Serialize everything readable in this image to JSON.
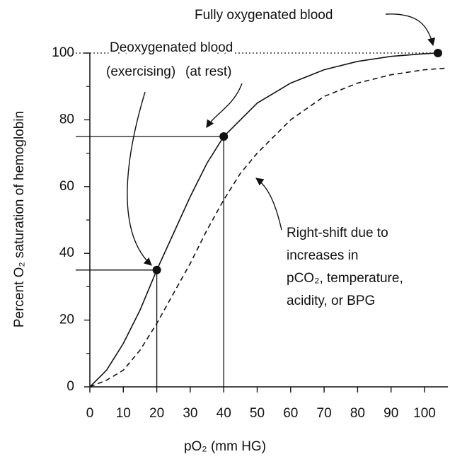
{
  "chart_data": {
    "type": "line",
    "xlabel": "pO₂ (mm HG)",
    "ylabel": "Percent O₂ saturation of hemoglobin",
    "x": [
      0,
      5,
      10,
      15,
      20,
      25,
      30,
      35,
      40,
      45,
      50,
      60,
      70,
      80,
      90,
      100,
      104,
      107
    ],
    "series": [
      {
        "color": "#111111",
        "style": "solid",
        "values": [
          0,
          5,
          13,
          23,
          35,
          46,
          57,
          67,
          75,
          80,
          85,
          91,
          95,
          97.5,
          99,
          99.8,
          100,
          null
        ]
      },
      {
        "color": "#111111",
        "style": "dashed",
        "values": [
          0,
          2,
          5,
          11,
          19,
          28,
          37,
          47,
          56,
          64,
          70,
          80,
          87,
          91,
          93.5,
          95,
          95.3,
          95.5
        ]
      }
    ],
    "points": [
      {
        "x": 20,
        "y": 35
      },
      {
        "x": 40,
        "y": 75
      },
      {
        "x": 104,
        "y": 100
      }
    ],
    "xlim": [
      0,
      107
    ],
    "ylim": [
      0,
      100
    ],
    "xticks": [
      0,
      10,
      20,
      30,
      40,
      50,
      60,
      70,
      80,
      90,
      100
    ],
    "yticks": [
      0,
      20,
      40,
      60,
      80,
      100
    ],
    "yminorticks": [
      10,
      30,
      50,
      70,
      90
    ],
    "annotations": [
      "Fully oxygenated blood",
      "Deoxygenated blood",
      "(exercising)",
      "(at rest)",
      "Right-shift due to",
      "increases in",
      "pCO₂, temperature,",
      "acidity, or BPG"
    ]
  }
}
